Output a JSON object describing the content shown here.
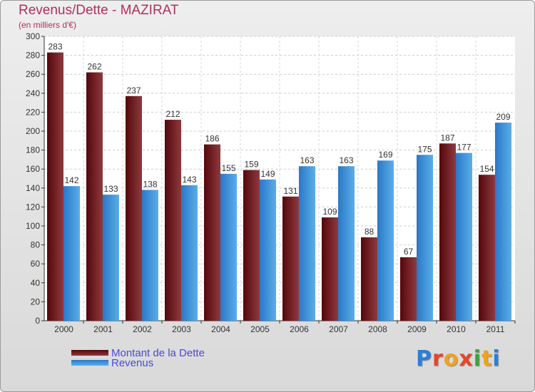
{
  "header": {
    "title": "Revenus/Dette - MAZIRAT",
    "subtitle": "(en milliers d'€)"
  },
  "logo": {
    "text": "Proxiti",
    "colors": [
      "#2b7fd8",
      "#e8442c",
      "#f0a21a",
      "#e8442c",
      "#3aa33a",
      "#f0a21a",
      "#2b7fd8"
    ]
  },
  "colors": {
    "dette": "#6e1d22",
    "revenus": "#3d8fd8",
    "title": "#b0305a",
    "legend_text": "#4a4ad8"
  },
  "chart_data": {
    "type": "bar",
    "title": "Revenus/Dette - MAZIRAT",
    "subtitle": "(en milliers d'€)",
    "categories": [
      "2000",
      "2001",
      "2002",
      "2003",
      "2004",
      "2005",
      "2006",
      "2007",
      "2008",
      "2009",
      "2010",
      "2011"
    ],
    "series": [
      {
        "name": "Montant de la Dette",
        "color": "#6e1d22",
        "values": [
          283,
          262,
          237,
          212,
          186,
          159,
          131,
          109,
          88,
          67,
          187,
          154
        ]
      },
      {
        "name": "Revenus",
        "color": "#3d8fd8",
        "values": [
          142,
          133,
          138,
          143,
          155,
          149,
          163,
          163,
          169,
          175,
          177,
          209
        ]
      }
    ],
    "ylim": [
      0,
      300
    ],
    "yticks": [
      0,
      20,
      40,
      60,
      80,
      100,
      120,
      140,
      160,
      180,
      200,
      220,
      240,
      260,
      280,
      300
    ],
    "grid": true,
    "legend_position": "bottom-left",
    "data_labels": true
  }
}
